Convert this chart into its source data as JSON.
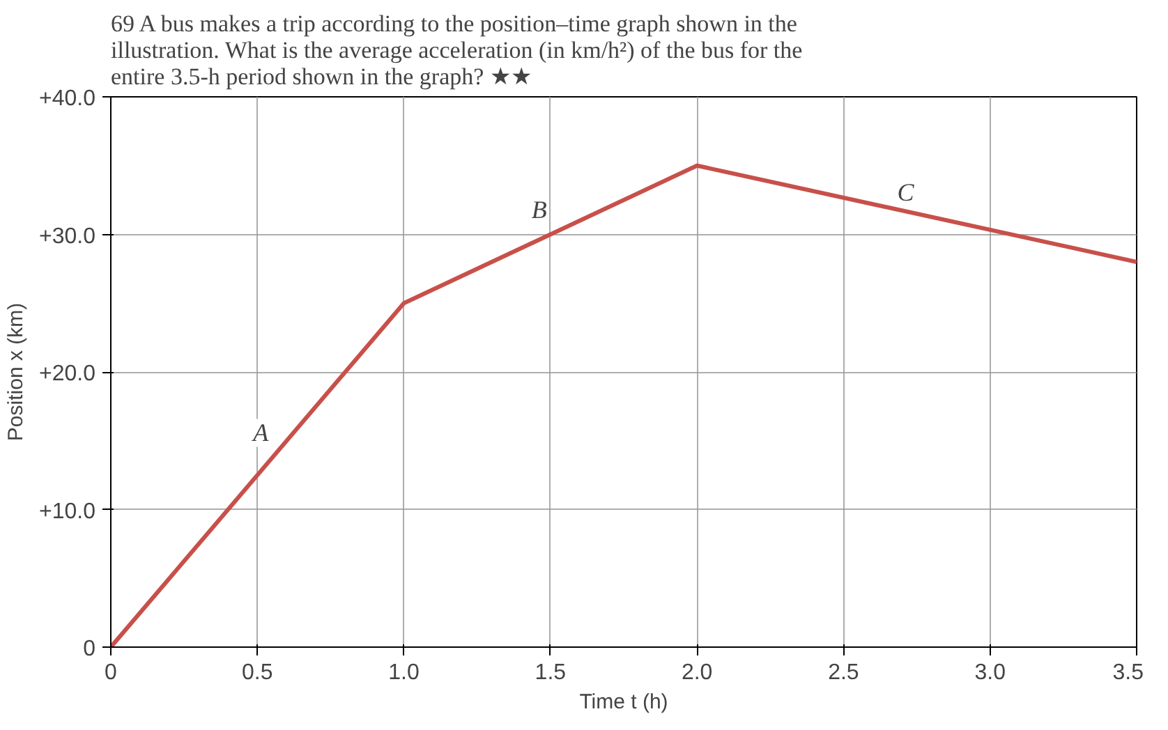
{
  "chart_data": {
    "type": "line",
    "title": "69 A bus makes a trip according to the position–time graph shown in the illustration. What is the average acceleration (in km/h²) of the bus for the entire 3.5-h period shown in the graph? ★★",
    "xlabel": "Time t (h)",
    "ylabel": "Position x (km)",
    "x": [
      0,
      1.0,
      2.0,
      3.5
    ],
    "series": [
      {
        "color": "#c8504a",
        "values": [
          0,
          25,
          35,
          28
        ]
      }
    ],
    "xlim": [
      0,
      3.5
    ],
    "xticks": [
      0,
      0.5,
      {
        "value": 1,
        "label": "1.0"
      },
      1.5,
      {
        "value": 2,
        "label": "2.0"
      },
      2.5,
      {
        "value": 3,
        "label": "3.0"
      },
      3.5
    ],
    "ylim": [
      0,
      40
    ],
    "yticks": [
      {
        "value": 0,
        "label": "0"
      },
      {
        "value": 10,
        "label": "+10.0"
      },
      {
        "value": 20,
        "label": "+20.0"
      },
      {
        "value": 30,
        "label": "+30.0"
      },
      {
        "value": 40,
        "label": "+40.0"
      }
    ],
    "grid": true,
    "marker": "none",
    "line_style": "solid",
    "annotations": [
      {
        "text": "A",
        "x": 0.55,
        "y": 13.75
      },
      {
        "text": "B",
        "x": 1.5,
        "y": 30
      },
      {
        "text": "C",
        "x": 2.75,
        "y": 31.25
      }
    ]
  }
}
